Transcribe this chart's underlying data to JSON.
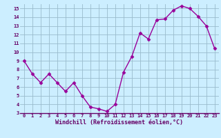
{
  "x": [
    0,
    1,
    2,
    3,
    4,
    5,
    6,
    7,
    8,
    9,
    10,
    11,
    12,
    13,
    14,
    15,
    16,
    17,
    18,
    19,
    20,
    21,
    22,
    23
  ],
  "y": [
    9.0,
    7.5,
    6.5,
    7.5,
    6.5,
    5.5,
    6.5,
    5.0,
    3.7,
    3.5,
    3.2,
    4.0,
    7.7,
    9.5,
    12.2,
    11.5,
    13.7,
    13.8,
    14.8,
    15.3,
    15.0,
    14.1,
    13.0,
    10.4
  ],
  "line_color": "#990099",
  "marker": "D",
  "markersize": 2.5,
  "linewidth": 1.0,
  "bg_color": "#cceeff",
  "grid_color": "#99bbcc",
  "xlabel": "Windchill (Refroidissement éolien,°C)",
  "xlim": [
    -0.5,
    23.5
  ],
  "ylim": [
    3,
    15.5
  ],
  "yticks": [
    3,
    4,
    5,
    6,
    7,
    8,
    9,
    10,
    11,
    12,
    13,
    14,
    15
  ],
  "xticks": [
    0,
    1,
    2,
    3,
    4,
    5,
    6,
    7,
    8,
    9,
    10,
    11,
    12,
    13,
    14,
    15,
    16,
    17,
    18,
    19,
    20,
    21,
    22,
    23
  ],
  "tick_color": "#660066",
  "label_color": "#660066",
  "spine_color": "#660066"
}
